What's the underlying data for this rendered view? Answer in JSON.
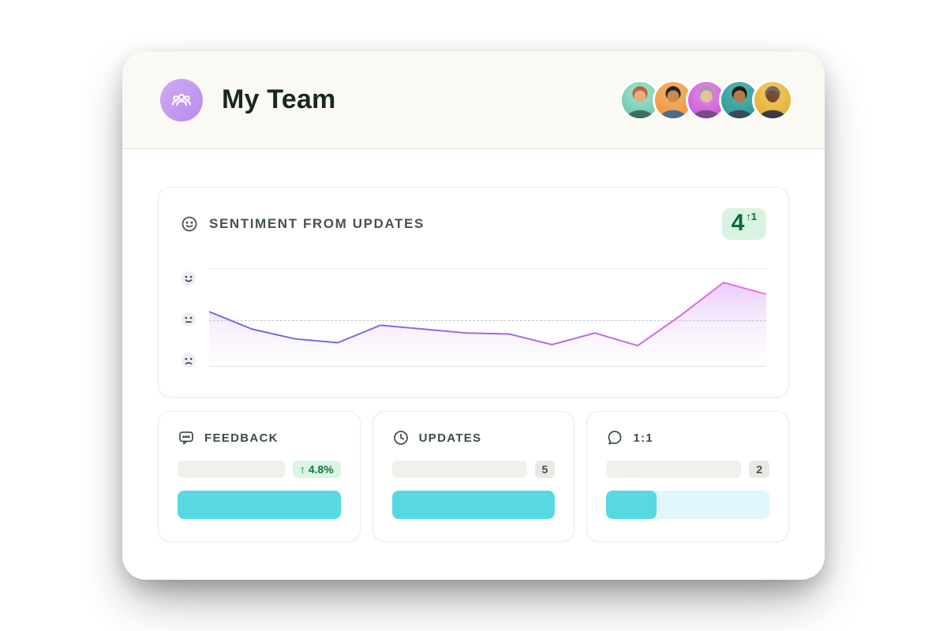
{
  "colors": {
    "accent_teal": "#58d8e2",
    "teal_track": "#e1f6fa",
    "badge_green_bg": "#dcf4e3",
    "badge_green_text": "#0e7a3e",
    "badge_gray_bg": "#e9e8e4",
    "badge_gray_text": "#4c4c49",
    "score_badge_bg": "#d9f3e2",
    "score_badge_text": "#0d6b39",
    "chart_line_start": "#6668e0",
    "chart_line_mid": "#a565e6",
    "chart_line_end": "#ea6be0",
    "header_bg": "#fbf9f4",
    "team_icon_bg": "#c39df0"
  },
  "header": {
    "title": "My Team",
    "team_icon": "people-group-icon",
    "avatars": [
      {
        "id": "teammate-1",
        "bg1": "#a8e4cd",
        "bg2": "#5fc3a8",
        "skin": "#e6ad85",
        "hair": "#b56337",
        "shirt": "#3d6e60"
      },
      {
        "id": "teammate-2",
        "bg1": "#f7b668",
        "bg2": "#ec8f33",
        "skin": "#c9894f",
        "hair": "#2c2220",
        "shirt": "#4a6c8a"
      },
      {
        "id": "teammate-3",
        "bg1": "#e58ae8",
        "bg2": "#c553d4",
        "skin": "#e8c19b",
        "hair": "#9d9da6",
        "shirt": "#7a4a8a"
      },
      {
        "id": "teammate-4",
        "bg1": "#55b9b4",
        "bg2": "#2b8f92",
        "skin": "#b37a4b",
        "hair": "#1f1a18",
        "shirt": "#3a4a5a"
      },
      {
        "id": "teammate-5",
        "bg1": "#f3cd62",
        "bg2": "#e0a92e",
        "skin": "#7a4a30",
        "hair": "#6c6c72",
        "shirt": "#3a3a44"
      }
    ]
  },
  "sentiment_card": {
    "title": "SENTIMENT FROM UPDATES",
    "icon": "smiley-icon",
    "score": "4",
    "score_delta": "↑1",
    "chart_data": {
      "type": "line",
      "title": "Sentiment from updates",
      "x": [
        1,
        2,
        3,
        4,
        5,
        6,
        7,
        8,
        9,
        10,
        11,
        12,
        13,
        14
      ],
      "values": [
        56,
        38,
        28,
        24,
        42,
        38,
        34,
        33,
        22,
        34,
        21,
        52,
        86,
        74
      ],
      "baseline": 48,
      "ylim": [
        0,
        100
      ],
      "y_axis_labels": [
        "happy",
        "neutral",
        "sad"
      ],
      "grid": "top and bottom rule with dashed neutral baseline",
      "legend": "none"
    }
  },
  "stat_cards": [
    {
      "label": "FEEDBACK",
      "icon": "feedback-bubble-icon",
      "badge": "↑ 4.8%",
      "badge_style": "success",
      "progress_percent": 100
    },
    {
      "label": "UPDATES",
      "icon": "clock-icon",
      "badge": "5",
      "badge_style": "neutral",
      "progress_percent": 100
    },
    {
      "label": "1:1",
      "icon": "chat-bubble-icon",
      "badge": "2",
      "badge_style": "neutral",
      "progress_percent": 31
    }
  ]
}
